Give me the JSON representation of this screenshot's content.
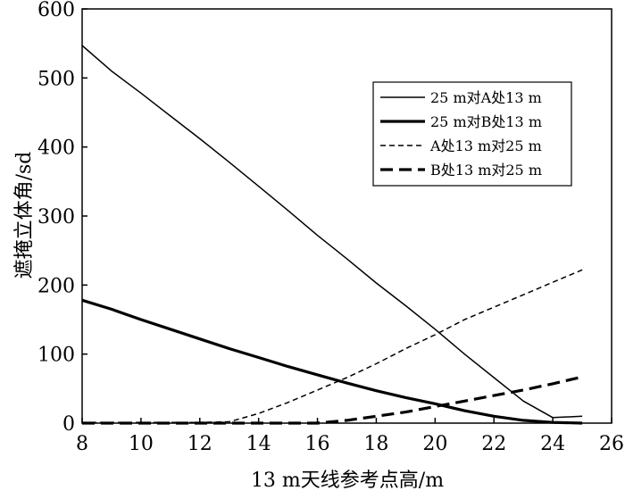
{
  "chart_data": {
    "type": "line",
    "title": "",
    "xlabel": "13 m天线参考点高/m",
    "ylabel": "遮掩立体角/sd",
    "xlim": [
      8,
      26
    ],
    "ylim": [
      0,
      600
    ],
    "xticks": [
      8,
      10,
      12,
      14,
      16,
      18,
      20,
      22,
      24,
      26
    ],
    "yticks": [
      0,
      100,
      200,
      300,
      400,
      500,
      600
    ],
    "grid": false,
    "legend_position": "top-right",
    "series": [
      {
        "name": "25 m对A处13 m",
        "style": "solid-thin",
        "x": [
          8,
          9,
          10,
          11,
          12,
          13,
          14,
          15,
          16,
          17,
          18,
          19,
          20,
          21,
          22,
          23,
          24,
          25
        ],
        "y": [
          547,
          510,
          478,
          445,
          412,
          378,
          343,
          308,
          272,
          238,
          203,
          170,
          136,
          100,
          66,
          32,
          8,
          10
        ]
      },
      {
        "name": "25 m对B处13 m",
        "style": "solid-thick",
        "x": [
          8,
          9,
          10,
          11,
          12,
          13,
          14,
          15,
          16,
          17,
          18,
          19,
          20,
          21,
          22,
          23,
          24,
          25
        ],
        "y": [
          178,
          165,
          150,
          136,
          122,
          108,
          95,
          82,
          70,
          58,
          47,
          37,
          28,
          18,
          10,
          4,
          1,
          0
        ]
      },
      {
        "name": "A处13 m对25 m",
        "style": "dashed-thin",
        "x": [
          8,
          9,
          10,
          11,
          12,
          13,
          14,
          15,
          16,
          17,
          18,
          19,
          20,
          21,
          22,
          23,
          24,
          25
        ],
        "y": [
          1,
          1,
          1,
          1,
          1,
          2,
          14,
          30,
          48,
          66,
          86,
          108,
          128,
          150,
          168,
          186,
          204,
          222
        ]
      },
      {
        "name": "B处13 m对25 m",
        "style": "dashed-thick",
        "x": [
          8,
          9,
          10,
          11,
          12,
          13,
          14,
          15,
          16,
          17,
          18,
          19,
          20,
          21,
          22,
          23,
          24,
          25
        ],
        "y": [
          0,
          0,
          0,
          0,
          0,
          0,
          0,
          0,
          0,
          4,
          10,
          16,
          24,
          32,
          40,
          48,
          57,
          67
        ]
      }
    ]
  }
}
